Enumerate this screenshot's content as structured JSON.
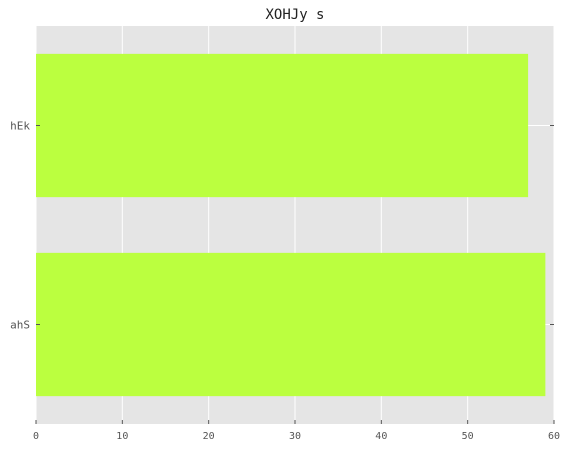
{
  "chart_data": {
    "type": "bar",
    "orientation": "horizontal",
    "title": "XOHJy s",
    "xlabel": "",
    "ylabel": "",
    "categories": [
      "ahS",
      "hEk"
    ],
    "values": [
      59,
      57
    ],
    "xlim": [
      0,
      60
    ],
    "xticks": [
      0,
      10,
      20,
      30,
      40,
      50,
      60
    ],
    "grid": true,
    "legend": "none",
    "colors": {
      "bar": "#bbff3f",
      "background": "#e5e5e5",
      "grid": "#ffffff"
    }
  }
}
